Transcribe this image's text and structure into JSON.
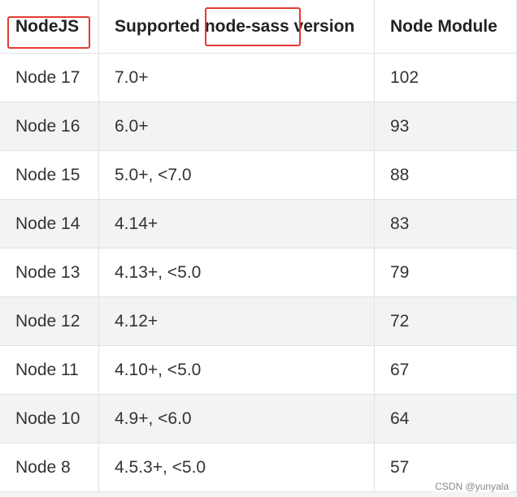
{
  "table": {
    "headers": [
      "NodeJS",
      "Supported node-sass version",
      "Node Module"
    ],
    "rows": [
      [
        "Node 17",
        "7.0+",
        "102"
      ],
      [
        "Node 16",
        "6.0+",
        "93"
      ],
      [
        "Node 15",
        "5.0+, <7.0",
        "88"
      ],
      [
        "Node 14",
        "4.14+",
        "83"
      ],
      [
        "Node 13",
        "4.13+, <5.0",
        "79"
      ],
      [
        "Node 12",
        "4.12+",
        "72"
      ],
      [
        "Node 11",
        "4.10+, <5.0",
        "67"
      ],
      [
        "Node 10",
        "4.9+, <6.0",
        "64"
      ],
      [
        "Node 8",
        "4.5.3+, <5.0",
        "57"
      ]
    ]
  },
  "watermark": "CSDN @yunyala"
}
